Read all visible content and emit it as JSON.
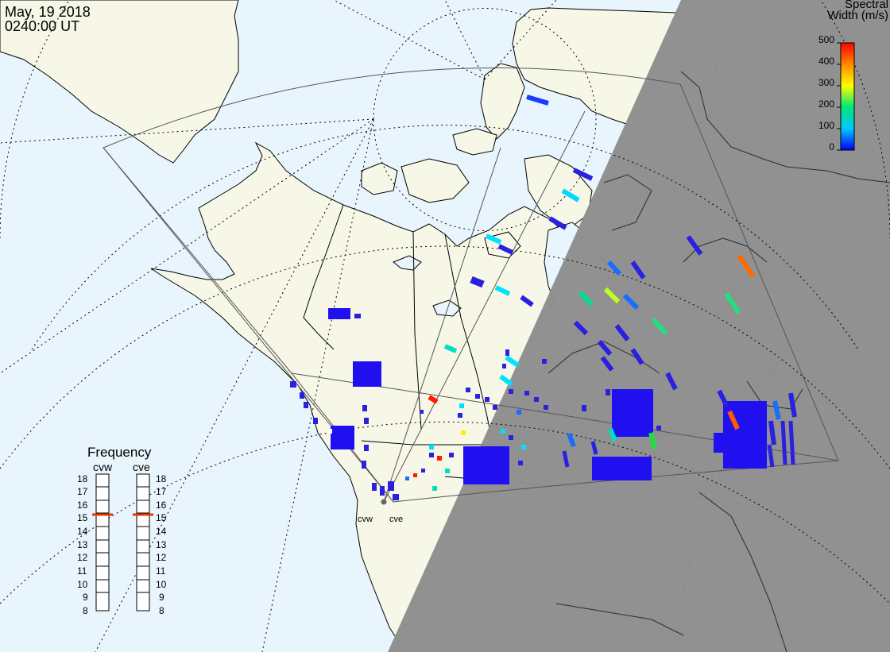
{
  "header": {
    "date": "May, 19 2018",
    "time": "0240:00 UT"
  },
  "colorbar": {
    "title_line1": "Spectral",
    "title_line2": "Width (m/s)",
    "ticks": [
      "500",
      "400",
      "300",
      "200",
      "100",
      "0"
    ],
    "min": 0,
    "max": 500
  },
  "frequency_panel": {
    "title": "Frequency",
    "radars": [
      "cvw",
      "cve"
    ],
    "scale": [
      "18",
      "17",
      "16",
      "15",
      "14",
      "13",
      "12",
      "11",
      "10",
      "9",
      "8"
    ],
    "cvw_value": 15,
    "cve_value": 15,
    "indicator_color": "#e03a00"
  },
  "stations": {
    "cvw": "cvw",
    "cve": "cve"
  },
  "colors": {
    "ocean": "#e8f5fc",
    "land_day": "#f7f7e8",
    "night": "#8f8f8f"
  }
}
